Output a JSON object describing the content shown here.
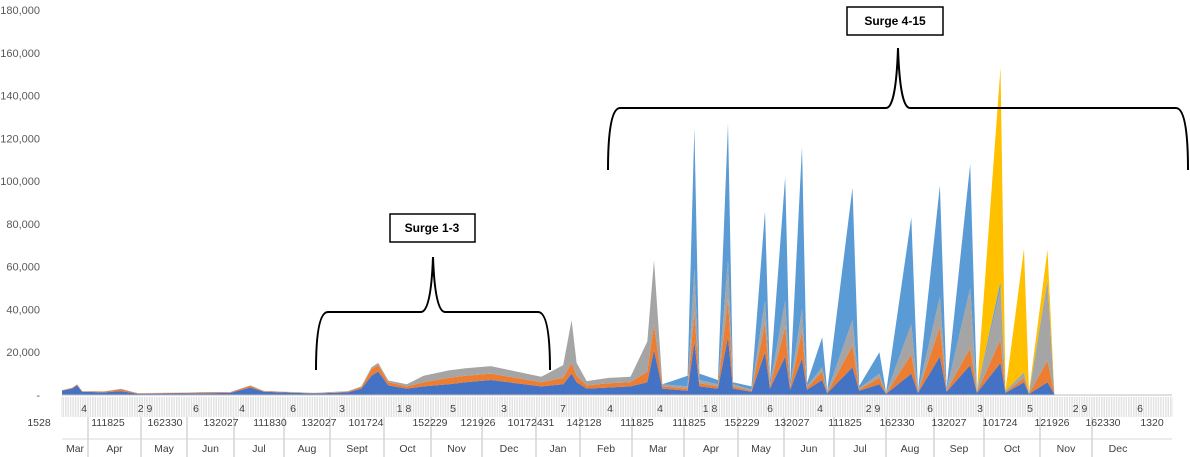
{
  "chart_data": {
    "type": "area",
    "stacked": true,
    "ylim": [
      0,
      180000
    ],
    "yticks": [
      "-",
      "20,000",
      "40,000",
      "60,000",
      "80,000",
      "100,000",
      "120,000",
      "140,000",
      "160,000",
      "180,000"
    ],
    "month_labels": [
      "Mar",
      "Apr",
      "May",
      "Jun",
      "Jul",
      "Aug",
      "Sept",
      "Oct",
      "Nov",
      "Dec",
      "Jan",
      "Feb",
      "Mar",
      "Apr",
      "May",
      "Jun",
      "Jul",
      "Aug",
      "Sep",
      "Oct",
      "Nov",
      "Dec"
    ],
    "day_labels_row1": [
      "4",
      "2 9",
      "6",
      "4",
      "6",
      "3",
      "1 8",
      "5",
      "3",
      "7",
      "4",
      "4",
      "1 8",
      "6",
      "4",
      "2 9",
      "6",
      "3",
      "5",
      "2 9",
      "6"
    ],
    "day_labels_row2": [
      "1528",
      "111825",
      "162330",
      "132027",
      "111830",
      "132027",
      "101724",
      "152229",
      "121926",
      "10172431",
      "142128",
      "111825",
      "111825",
      "152229",
      "132027",
      "111825",
      "162330",
      "132027",
      "101724",
      "121926",
      "162330",
      "1320"
    ],
    "series_colors": [
      "#4472C4",
      "#ED7D31",
      "#A5A5A5",
      "#5B9BD5",
      "#FFC000"
    ],
    "days_total": 660,
    "daily_stacks": {
      "note_columns": [
        "day_index",
        "blue_dark",
        "orange",
        "gray",
        "blue_light",
        "yellow"
      ],
      "points": [
        [
          0,
          2000,
          200,
          100,
          0,
          0
        ],
        [
          6,
          3000,
          300,
          100,
          0,
          0
        ],
        [
          9,
          4500,
          400,
          100,
          0,
          0
        ],
        [
          12,
          1500,
          200,
          100,
          0,
          0
        ],
        [
          25,
          1200,
          400,
          100,
          0,
          0
        ],
        [
          35,
          1800,
          900,
          200,
          0,
          0
        ],
        [
          45,
          600,
          200,
          100,
          0,
          0
        ],
        [
          70,
          700,
          300,
          100,
          0,
          0
        ],
        [
          90,
          900,
          400,
          100,
          0,
          0
        ],
        [
          100,
          1000,
          300,
          100,
          0,
          0
        ],
        [
          112,
          3500,
          800,
          200,
          0,
          0
        ],
        [
          120,
          1500,
          300,
          100,
          0,
          0
        ],
        [
          150,
          700,
          200,
          100,
          0,
          0
        ],
        [
          170,
          1200,
          400,
          200,
          0,
          0
        ],
        [
          178,
          3000,
          800,
          200,
          0,
          0
        ],
        [
          184,
          9000,
          3000,
          1000,
          0,
          0
        ],
        [
          188,
          11000,
          3000,
          1000,
          0,
          0
        ],
        [
          194,
          4500,
          1500,
          800,
          0,
          0
        ],
        [
          205,
          3000,
          1000,
          1000,
          0,
          0
        ],
        [
          215,
          4000,
          2000,
          3000,
          0,
          0
        ],
        [
          230,
          5000,
          3000,
          3500,
          0,
          0
        ],
        [
          240,
          6000,
          3000,
          3500,
          0,
          0
        ],
        [
          255,
          7000,
          3000,
          3500,
          0,
          0
        ],
        [
          270,
          5500,
          2500,
          3000,
          0,
          0
        ],
        [
          285,
          4000,
          2000,
          2500,
          0,
          0
        ],
        [
          298,
          5000,
          3000,
          6000,
          0,
          0
        ],
        [
          303,
          10000,
          5000,
          20000,
          0,
          0
        ],
        [
          306,
          6000,
          3000,
          6000,
          0,
          0
        ],
        [
          312,
          3000,
          1500,
          2000,
          0,
          0
        ],
        [
          325,
          3500,
          2000,
          2500,
          0,
          0
        ],
        [
          338,
          4000,
          2000,
          2500,
          0,
          0
        ],
        [
          348,
          6000,
          5000,
          14000,
          0,
          0
        ],
        [
          352,
          21000,
          12000,
          30000,
          0,
          0
        ],
        [
          357,
          3000,
          1000,
          1000,
          0,
          0
        ],
        [
          372,
          2000,
          1000,
          1000,
          5000,
          0
        ],
        [
          376,
          25000,
          14000,
          20000,
          66000,
          0
        ],
        [
          379,
          4000,
          1500,
          1500,
          3000,
          0
        ],
        [
          390,
          3000,
          1000,
          1000,
          2000,
          0
        ],
        [
          396,
          27000,
          18000,
          18000,
          64000,
          0
        ],
        [
          399,
          3000,
          1000,
          1000,
          1000,
          0
        ],
        [
          410,
          1500,
          500,
          500,
          1500,
          0
        ],
        [
          418,
          20000,
          14000,
          10000,
          42000,
          0
        ],
        [
          421,
          3000,
          1000,
          1000,
          2000,
          0
        ],
        [
          430,
          18000,
          14000,
          12000,
          58000,
          0
        ],
        [
          433,
          2500,
          1000,
          1000,
          2000,
          0
        ],
        [
          440,
          17000,
          13000,
          10000,
          76000,
          0
        ],
        [
          443,
          2500,
          800,
          800,
          1500,
          0
        ],
        [
          452,
          7000,
          4000,
          2000,
          14000,
          0
        ],
        [
          455,
          800,
          300,
          200,
          500,
          0
        ],
        [
          470,
          13000,
          10000,
          12000,
          62000,
          0
        ],
        [
          474,
          2000,
          600,
          600,
          1000,
          0
        ],
        [
          486,
          5000,
          3000,
          2000,
          10000,
          0
        ],
        [
          490,
          500,
          200,
          200,
          300,
          0
        ],
        [
          505,
          10000,
          9000,
          14000,
          50000,
          0
        ],
        [
          509,
          1000,
          300,
          300,
          600,
          0
        ],
        [
          522,
          18000,
          14000,
          14000,
          52000,
          0
        ],
        [
          526,
          1500,
          500,
          500,
          1000,
          0
        ],
        [
          540,
          14000,
          8000,
          28000,
          58000,
          0
        ],
        [
          544,
          1000,
          300,
          300,
          500,
          0
        ],
        [
          558,
          15000,
          11000,
          24000,
          3000,
          100000
        ],
        [
          561,
          1000,
          300,
          300,
          300,
          200
        ],
        [
          572,
          6000,
          2000,
          2000,
          500,
          58000
        ],
        [
          575,
          500,
          200,
          200,
          0,
          500
        ],
        [
          586,
          6000,
          10000,
          38000,
          0,
          14000
        ],
        [
          590,
          500,
          200,
          200,
          0,
          200
        ]
      ]
    }
  },
  "annotations": {
    "surge13": "Surge 1-3",
    "surge415": "Surge 4-15"
  }
}
